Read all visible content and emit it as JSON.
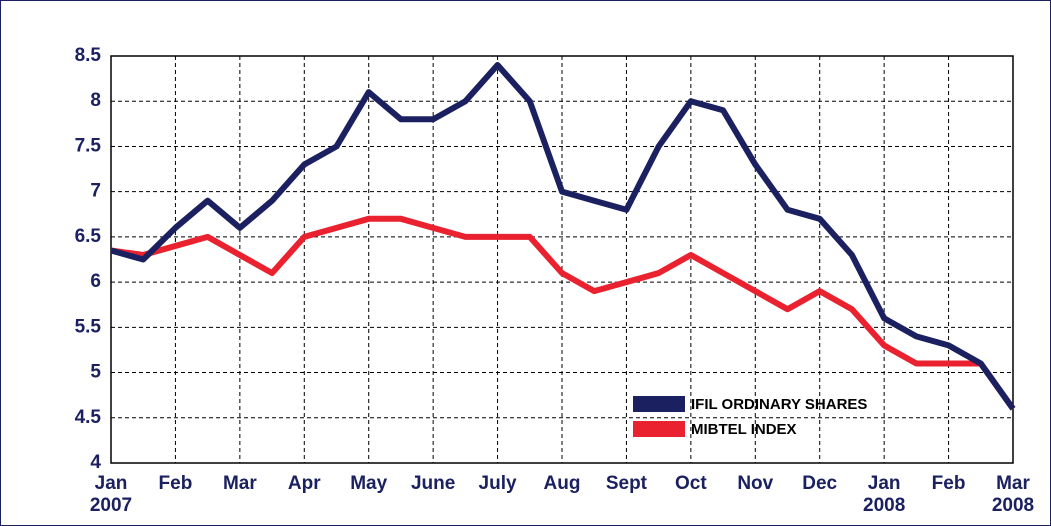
{
  "chart_data": {
    "type": "line",
    "x": [
      0,
      0.5,
      1,
      1.5,
      2,
      2.5,
      3,
      3.5,
      4,
      4.5,
      5,
      5.5,
      6,
      6.5,
      7,
      7.5,
      8,
      8.5,
      9,
      9.5,
      10,
      10.5,
      11,
      11.5,
      12,
      12.5,
      13,
      13.5,
      14
    ],
    "series": [
      {
        "name": "IFIL ORDINARY SHARES",
        "color": "#1b2160",
        "values": [
          6.35,
          6.25,
          6.6,
          6.9,
          6.6,
          6.9,
          7.3,
          7.5,
          8.1,
          7.8,
          7.8,
          8.0,
          8.4,
          8.0,
          7.0,
          6.9,
          6.8,
          7.5,
          8.0,
          7.9,
          7.3,
          6.8,
          6.7,
          6.3,
          5.6,
          5.4,
          5.3,
          5.1,
          4.6
        ]
      },
      {
        "name": "MIBTEL INDEX",
        "color": "#ea2230",
        "values": [
          6.35,
          6.3,
          6.4,
          6.5,
          6.3,
          6.1,
          6.5,
          6.6,
          6.7,
          6.7,
          6.6,
          6.5,
          6.5,
          6.5,
          6.1,
          5.9,
          6.0,
          6.1,
          6.3,
          6.1,
          5.9,
          5.7,
          5.9,
          5.7,
          5.3,
          5.1,
          5.1,
          5.1,
          4.6
        ]
      }
    ],
    "xlim": [
      0,
      14
    ],
    "xticks": [
      {
        "value": 0,
        "label": "Jan\n2007"
      },
      {
        "value": 1,
        "label": "Feb"
      },
      {
        "value": 2,
        "label": "Mar"
      },
      {
        "value": 3,
        "label": "Apr"
      },
      {
        "value": 4,
        "label": "May"
      },
      {
        "value": 5,
        "label": "June"
      },
      {
        "value": 6,
        "label": "July"
      },
      {
        "value": 7,
        "label": "Aug"
      },
      {
        "value": 8,
        "label": "Sept"
      },
      {
        "value": 9,
        "label": "Oct"
      },
      {
        "value": 10,
        "label": "Nov"
      },
      {
        "value": 11,
        "label": "Dec"
      },
      {
        "value": 12,
        "label": "Jan\n2008"
      },
      {
        "value": 13,
        "label": "Feb"
      },
      {
        "value": 14,
        "label": "Mar\n2008"
      }
    ],
    "ylim": [
      4,
      8.5
    ],
    "yticks": [
      4,
      4.5,
      5,
      5.5,
      6,
      6.5,
      7,
      7.5,
      8,
      8.5
    ],
    "grid": true,
    "legend": "lower right"
  }
}
